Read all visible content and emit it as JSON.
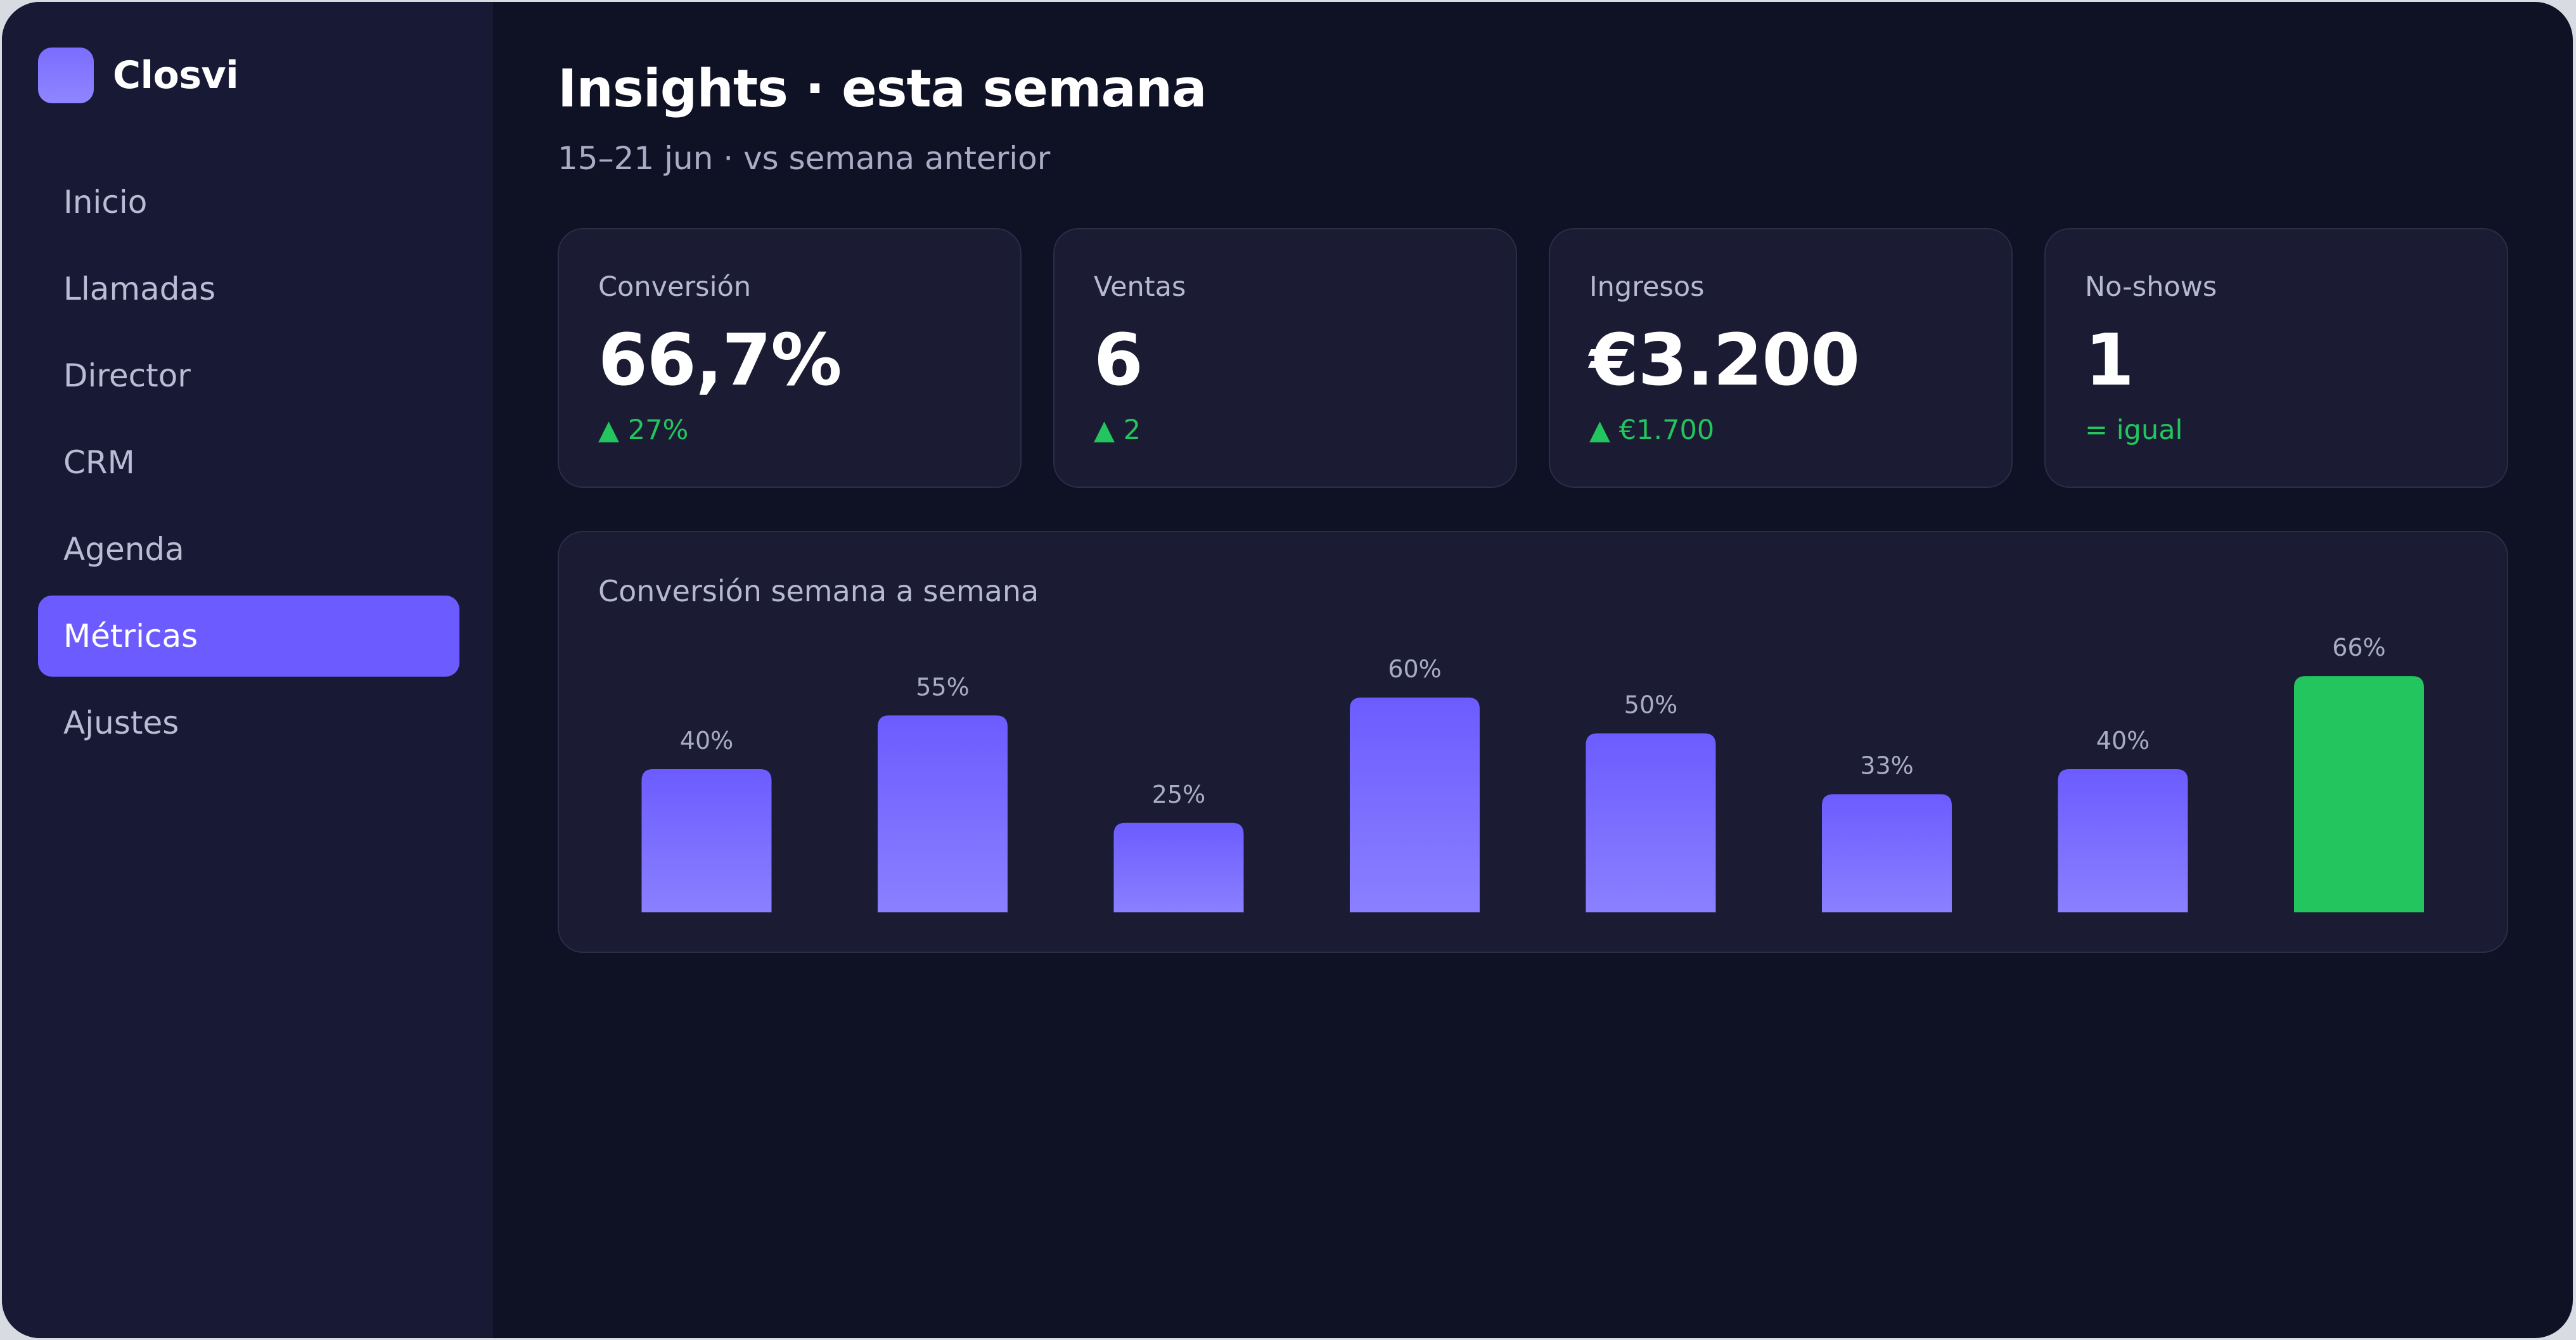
{
  "brand": {
    "name": "Closvi",
    "logo_color": "#7b6dff"
  },
  "sidebar": {
    "items": [
      {
        "label": "Inicio",
        "active": false
      },
      {
        "label": "Llamadas",
        "active": false
      },
      {
        "label": "Director",
        "active": false
      },
      {
        "label": "CRM",
        "active": false
      },
      {
        "label": "Agenda",
        "active": false
      },
      {
        "label": "Métricas",
        "active": true
      },
      {
        "label": "Ajustes",
        "active": false
      }
    ]
  },
  "header": {
    "title": "Insights · esta semana",
    "subtitle": "15–21 jun · vs semana anterior"
  },
  "kpis": [
    {
      "label": "Conversión",
      "value": "66,7%",
      "delta": "▲ 27%"
    },
    {
      "label": "Ventas",
      "value": "6",
      "delta": "▲ 2"
    },
    {
      "label": "Ingresos",
      "value": "€3.200",
      "delta": "▲ €1.700"
    },
    {
      "label": "No-shows",
      "value": "1",
      "delta": "= igual"
    }
  ],
  "colors": {
    "accent": "#6c5cff",
    "positive": "#22c55e",
    "bar_top": "#6c5cff",
    "bar_bottom": "#8a80ff",
    "highlight_bar": "#22c55e"
  },
  "chart_data": {
    "type": "bar",
    "title": "Conversión semana a semana",
    "values": [
      40,
      55,
      25,
      60,
      50,
      33,
      40,
      66
    ],
    "labels": [
      "40%",
      "55%",
      "25%",
      "60%",
      "50%",
      "33%",
      "40%",
      "66%"
    ],
    "highlight_index": 7,
    "ylim": [
      0,
      66
    ],
    "grid": false,
    "legend": "none"
  }
}
